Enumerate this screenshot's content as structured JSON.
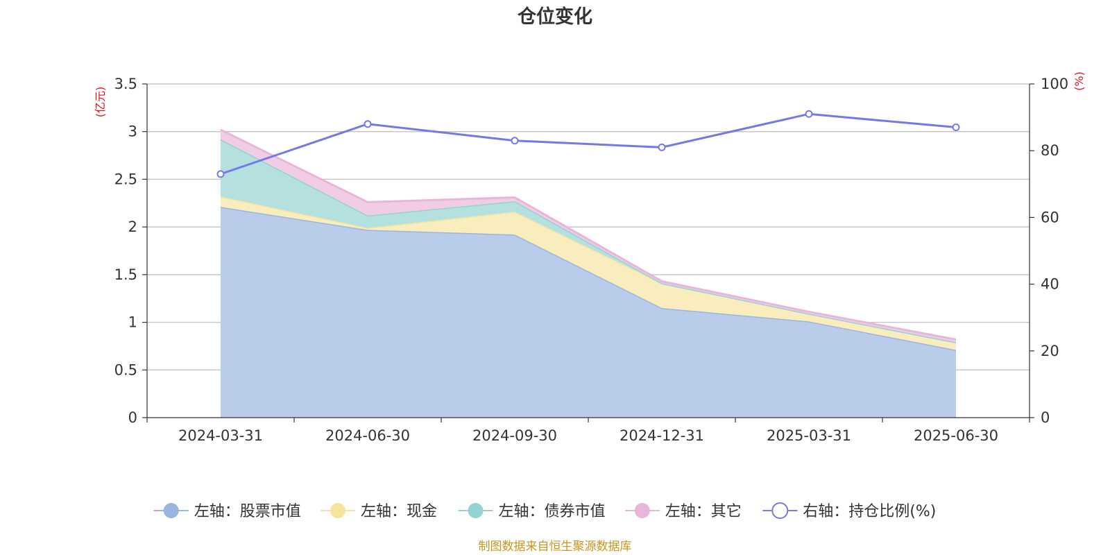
{
  "chart_data": {
    "type": "area",
    "title": "仓位变化",
    "categories": [
      "2024-03-31",
      "2024-06-30",
      "2024-09-30",
      "2024-12-31",
      "2025-03-31",
      "2025-06-30"
    ],
    "left_axis": {
      "unit": "(亿元)",
      "range": [
        0,
        3.5
      ],
      "ticks": [
        "0",
        "0.5",
        "1",
        "1.5",
        "2",
        "2.5",
        "3",
        "3.5"
      ]
    },
    "right_axis": {
      "unit": "(%)",
      "range": [
        0,
        100
      ],
      "ticks": [
        "0",
        "20",
        "40",
        "60",
        "80",
        "100"
      ]
    },
    "stacked_series": [
      {
        "name": "左轴：股票市值",
        "values": [
          2.21,
          1.97,
          1.92,
          1.15,
          1.01,
          0.71
        ],
        "line": "#9ab5df",
        "fill": "#b9cdeb"
      },
      {
        "name": "左轴：现金",
        "values": [
          0.11,
          0.02,
          0.24,
          0.26,
          0.08,
          0.08
        ],
        "line": "#f6e3a0",
        "fill": "#faedbd"
      },
      {
        "name": "左轴：债券市值",
        "values": [
          0.6,
          0.13,
          0.11,
          0.0,
          0.0,
          0.0
        ],
        "line": "#96d2d2",
        "fill": "#b5e0e0"
      },
      {
        "name": "左轴：其它",
        "values": [
          0.1,
          0.14,
          0.04,
          0.02,
          0.02,
          0.03
        ],
        "line": "#e8b6d9",
        "fill": "#f0cde4"
      }
    ],
    "line_series": {
      "name": "右轴：持仓比例(%)",
      "values": [
        73,
        88,
        83,
        81,
        91,
        87
      ],
      "color": "#7579e6"
    },
    "grid": true,
    "legend_position": "bottom",
    "unit_color": "#e8101c",
    "source_note": "制图数据来自恒生聚源数据库"
  }
}
